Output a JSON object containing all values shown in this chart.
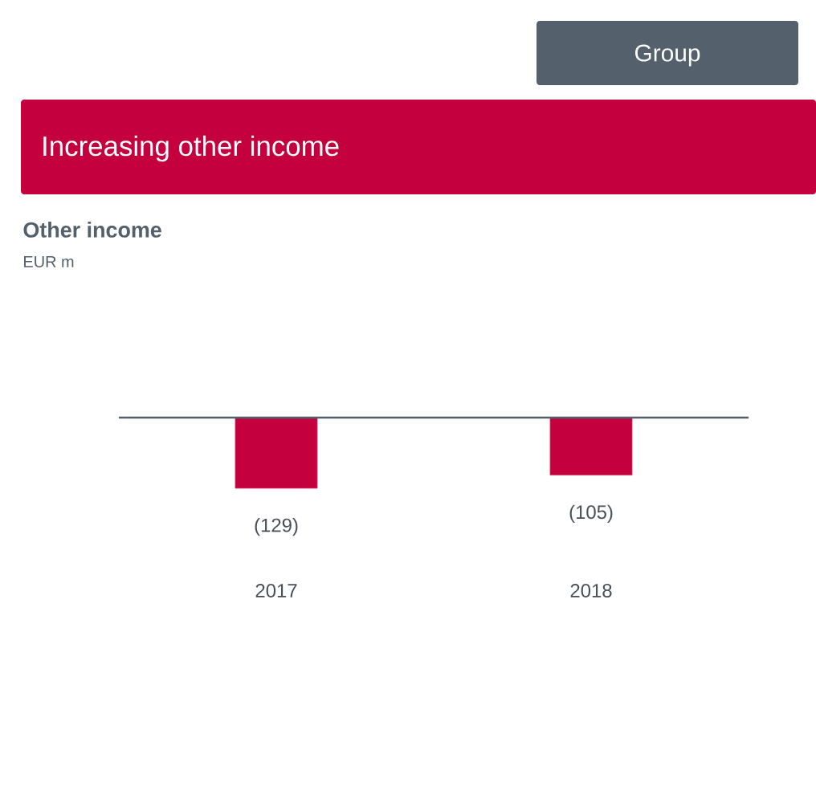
{
  "chart_data": {
    "type": "bar",
    "title": "Other income",
    "subtitle": "EUR m",
    "annotations": [
      "Group",
      "Increasing other income"
    ],
    "categories": [
      "2017",
      "2018"
    ],
    "values": [
      -129,
      -105
    ],
    "value_labels": [
      "(129)",
      "(105)"
    ],
    "color": "#c5003e",
    "tick_labels": "x"
  }
}
